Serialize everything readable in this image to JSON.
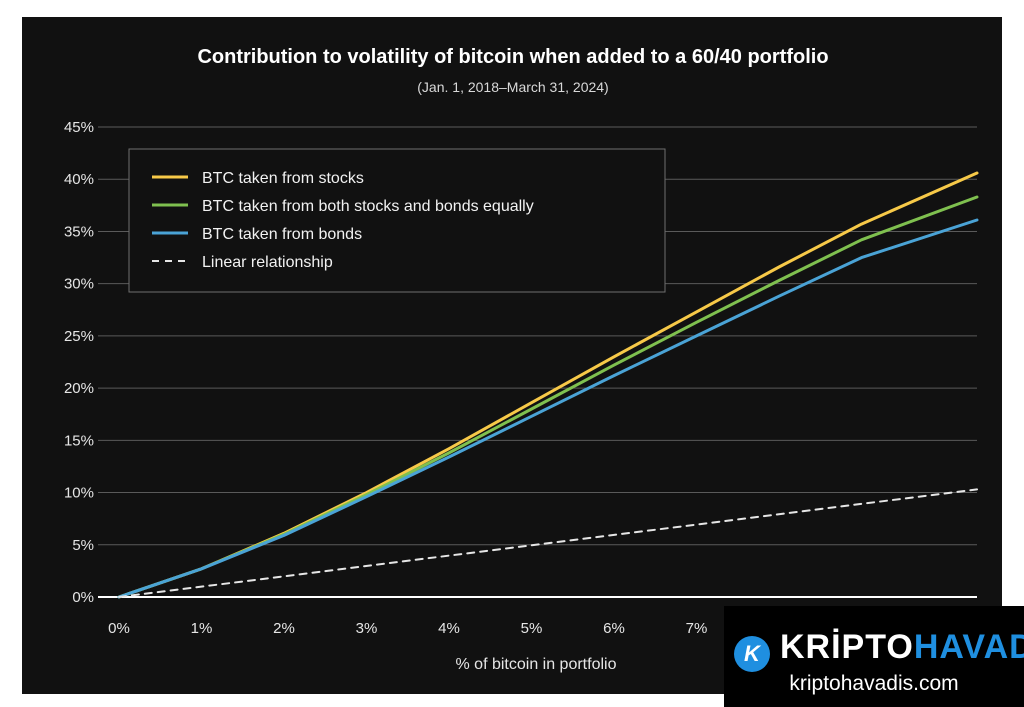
{
  "chart_data": {
    "type": "line",
    "title": "Contribution to volatility of bitcoin when added to a 60/40 portfolio",
    "subtitle": "(Jan. 1, 2018–March 31, 2024)",
    "xlabel": "% of bitcoin in portfolio",
    "ylabel": "",
    "xlim": [
      0,
      10.4
    ],
    "ylim": [
      0,
      45
    ],
    "x_ticks": [
      0,
      1,
      2,
      3,
      4,
      5,
      6,
      7
    ],
    "x_tick_labels": [
      "0%",
      "1%",
      "2%",
      "3%",
      "4%",
      "5%",
      "6%",
      "7%"
    ],
    "y_ticks": [
      0,
      5,
      10,
      15,
      20,
      25,
      30,
      35,
      40,
      45
    ],
    "y_tick_labels": [
      "0%",
      "5%",
      "10%",
      "15%",
      "20%",
      "25%",
      "30%",
      "35%",
      "40%",
      "45%"
    ],
    "grid": true,
    "legend_position": "top-left",
    "series": [
      {
        "name": "BTC taken from stocks",
        "color": "#f7c948",
        "style": "solid",
        "x": [
          0,
          1,
          2,
          3,
          4,
          5,
          6,
          7,
          8,
          9,
          10.4
        ],
        "y": [
          0,
          2.7,
          6.1,
          10.0,
          14.2,
          18.6,
          23.0,
          27.3,
          31.6,
          35.7,
          40.6
        ]
      },
      {
        "name": "BTC taken from both stocks and bonds equally",
        "color": "#7fc04f",
        "style": "solid",
        "x": [
          0,
          1,
          2,
          3,
          4,
          5,
          6,
          7,
          8,
          9,
          10.4
        ],
        "y": [
          0,
          2.7,
          6.0,
          9.8,
          13.8,
          18.0,
          22.2,
          26.3,
          30.3,
          34.2,
          38.3
        ]
      },
      {
        "name": "BTC taken from bonds",
        "color": "#4aa3d6",
        "style": "solid",
        "x": [
          0,
          1,
          2,
          3,
          4,
          5,
          6,
          7,
          8,
          9,
          10.4
        ],
        "y": [
          0,
          2.7,
          5.9,
          9.6,
          13.4,
          17.3,
          21.2,
          25.0,
          28.8,
          32.5,
          36.1
        ]
      },
      {
        "name": "Linear relationship",
        "color": "#e6e6e6",
        "style": "dashed",
        "x": [
          0,
          10.4
        ],
        "y": [
          0,
          10.3
        ]
      }
    ]
  },
  "watermark": {
    "logo_letter": "K",
    "brand_part1": "KRİPTO",
    "brand_part2": "HAVADİS",
    "url": "kriptohavadis.com"
  }
}
